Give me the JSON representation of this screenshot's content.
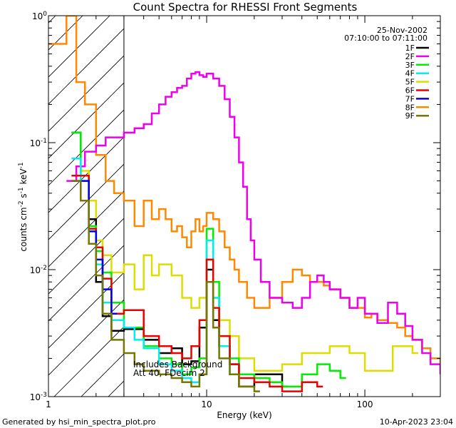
{
  "chart_data": {
    "type": "line",
    "title": "Count Spectra for RHESSI Front Segments",
    "xlabel": "Energy (keV)",
    "ylabel_parts": {
      "base": "counts cm",
      "exp1": "-2",
      "mid1": " s",
      "exp2": "-1",
      "mid2": " keV",
      "exp3": "-1"
    },
    "xscale": "log",
    "yscale": "log",
    "xlim": [
      1,
      300
    ],
    "ylim": [
      0.001,
      1
    ],
    "x_ticks": [
      {
        "value": 1,
        "label": "1"
      },
      {
        "value": 10,
        "label": "10"
      },
      {
        "value": 100,
        "label": "100"
      }
    ],
    "y_ticks": [
      {
        "value": 1,
        "base": "10",
        "exp": "0"
      },
      {
        "value": 0.1,
        "base": "10",
        "exp": "-1"
      },
      {
        "value": 0.01,
        "base": "10",
        "exp": "-2"
      },
      {
        "value": 0.001,
        "base": "10",
        "exp": "-3"
      }
    ],
    "date": "25-Nov-2002",
    "time_range": "07:10:00 to 07:11:00",
    "hatched_region_max_energy": 3,
    "annotation_lines": [
      "Includes Background",
      "Att 40, FDecim 2"
    ],
    "series": [
      {
        "name": "1F",
        "color": "#000000",
        "x": [
          1.4,
          1.6,
          1.8,
          2.0,
          2.2,
          2.5,
          3,
          4,
          5,
          6,
          7,
          8,
          9,
          10,
          11,
          12,
          14,
          16,
          20,
          25,
          30
        ],
        "y": [
          0.12,
          0.055,
          0.025,
          0.008,
          0.0043,
          0.0033,
          0.0034,
          0.0028,
          0.0022,
          0.0024,
          0.0018,
          0.0019,
          0.0035,
          0.01,
          0.004,
          0.0025,
          0.0018,
          0.0012,
          0.0015,
          0.0015,
          0.0012
        ]
      },
      {
        "name": "2F",
        "color": "#ee00ee",
        "x": [
          1.3,
          1.5,
          1.7,
          2.0,
          2.3,
          2.6,
          3,
          3.5,
          4,
          4.5,
          5,
          5.5,
          6,
          6.5,
          7,
          7.5,
          8,
          8.5,
          9,
          9.5,
          10,
          11,
          12,
          13,
          14,
          15,
          16,
          17,
          18,
          19,
          20,
          22,
          25,
          30,
          35,
          40,
          45,
          50,
          55,
          60,
          70,
          80,
          90,
          100,
          110,
          120,
          140,
          160,
          180,
          200,
          230,
          260,
          300
        ],
        "y": [
          0.05,
          0.065,
          0.085,
          0.095,
          0.11,
          0.11,
          0.12,
          0.13,
          0.14,
          0.17,
          0.2,
          0.23,
          0.25,
          0.27,
          0.28,
          0.32,
          0.35,
          0.36,
          0.34,
          0.33,
          0.35,
          0.32,
          0.28,
          0.22,
          0.16,
          0.11,
          0.07,
          0.045,
          0.025,
          0.017,
          0.012,
          0.008,
          0.006,
          0.0055,
          0.005,
          0.006,
          0.008,
          0.009,
          0.008,
          0.007,
          0.006,
          0.005,
          0.006,
          0.0045,
          0.0045,
          0.0038,
          0.0055,
          0.0045,
          0.0036,
          0.0028,
          0.0022,
          0.0018,
          0.0015
        ]
      },
      {
        "name": "3F",
        "color": "#00ee00",
        "x": [
          1.4,
          1.6,
          1.8,
          2.0,
          2.2,
          2.5,
          3,
          4,
          5,
          6,
          7,
          8,
          9,
          10,
          11,
          12,
          14,
          16,
          20,
          25,
          30,
          40,
          50,
          60,
          70
        ],
        "y": [
          0.12,
          0.055,
          0.022,
          0.014,
          0.0095,
          0.0055,
          0.0035,
          0.0025,
          0.002,
          0.0018,
          0.0015,
          0.0017,
          0.002,
          0.021,
          0.008,
          0.003,
          0.002,
          0.0015,
          0.0014,
          0.0013,
          0.0012,
          0.0015,
          0.0018,
          0.0016,
          0.0014
        ]
      },
      {
        "name": "4F",
        "color": "#00eeee",
        "x": [
          1.4,
          1.6,
          1.8,
          2.0,
          2.2,
          2.5,
          3,
          3.5,
          4,
          5,
          6,
          7,
          8,
          9,
          10,
          11,
          12,
          14
        ],
        "y": [
          0.075,
          0.05,
          0.021,
          0.011,
          0.0055,
          0.004,
          0.0035,
          0.0028,
          0.0024,
          0.0018,
          0.0016,
          0.0014,
          0.0013,
          0.0015,
          0.017,
          0.006,
          0.0025,
          0.0015
        ]
      },
      {
        "name": "5F",
        "color": "#dddd00",
        "x": [
          1.4,
          1.6,
          1.8,
          2.0,
          2.2,
          2.5,
          3,
          3.5,
          4,
          4.5,
          5,
          6,
          7,
          8,
          9,
          10,
          11,
          12,
          14,
          16,
          20,
          30,
          40,
          60,
          80,
          100,
          150,
          200
        ],
        "y": [
          0.055,
          0.06,
          0.035,
          0.017,
          0.013,
          0.0095,
          0.011,
          0.007,
          0.013,
          0.009,
          0.011,
          0.009,
          0.006,
          0.005,
          0.006,
          0.012,
          0.006,
          0.004,
          0.003,
          0.002,
          0.0016,
          0.0018,
          0.0022,
          0.0025,
          0.0022,
          0.0016,
          0.0025,
          0.0022
        ]
      },
      {
        "name": "6F",
        "color": "#ee0000",
        "x": [
          1.4,
          1.6,
          1.8,
          2.0,
          2.2,
          2.5,
          3,
          4,
          5,
          6,
          7,
          8,
          9,
          10,
          11,
          12,
          14,
          16,
          20,
          25,
          30,
          40,
          50
        ],
        "y": [
          0.055,
          0.055,
          0.021,
          0.015,
          0.0085,
          0.0045,
          0.0048,
          0.003,
          0.0025,
          0.0022,
          0.002,
          0.0025,
          0.004,
          0.012,
          0.005,
          0.003,
          0.0018,
          0.0014,
          0.0013,
          0.0012,
          0.0011,
          0.0013,
          0.0012
        ]
      },
      {
        "name": "7F",
        "color": "#0000ee",
        "x": [
          1.4,
          1.6,
          1.8,
          2.0,
          2.2,
          2.5
        ],
        "y": [
          0.05,
          0.05,
          0.02,
          0.012,
          0.007,
          0.0045
        ]
      },
      {
        "name": "8F",
        "color": "#ff8800",
        "x": [
          1.0,
          1.1,
          1.3,
          1.5,
          1.7,
          2.0,
          2.3,
          2.6,
          3,
          3.5,
          4,
          4.5,
          5,
          5.5,
          6,
          6.5,
          7,
          7.5,
          8,
          8.5,
          9,
          9.5,
          10,
          11,
          12,
          13,
          14,
          15,
          16,
          18,
          20,
          22,
          25,
          30,
          35,
          40,
          45,
          50,
          55,
          60,
          70,
          80,
          90,
          100,
          110,
          120,
          140,
          160,
          180,
          200,
          230,
          260,
          300
        ],
        "y": [
          0.6,
          0.6,
          1.0,
          0.3,
          0.2,
          0.08,
          0.05,
          0.04,
          0.035,
          0.022,
          0.035,
          0.025,
          0.03,
          0.025,
          0.02,
          0.022,
          0.018,
          0.015,
          0.02,
          0.025,
          0.02,
          0.022,
          0.028,
          0.025,
          0.02,
          0.015,
          0.012,
          0.01,
          0.008,
          0.006,
          0.005,
          0.005,
          0.006,
          0.008,
          0.01,
          0.009,
          0.008,
          0.008,
          0.0075,
          0.007,
          0.006,
          0.005,
          0.005,
          0.0042,
          0.0045,
          0.004,
          0.0038,
          0.0035,
          0.003,
          0.0028,
          0.0024,
          0.002,
          0.0018
        ]
      },
      {
        "name": "9F",
        "color": "#777700",
        "x": [
          1.4,
          1.6,
          1.8,
          2.0,
          2.2,
          2.5,
          3,
          3.5,
          4,
          5,
          6,
          7,
          8,
          9,
          10,
          11,
          12,
          14,
          16,
          20
        ],
        "y": [
          0.05,
          0.035,
          0.016,
          0.009,
          0.0045,
          0.0028,
          0.0022,
          0.0018,
          0.0016,
          0.0015,
          0.0014,
          0.0013,
          0.0012,
          0.0015,
          0.008,
          0.0035,
          0.002,
          0.0015,
          0.0012,
          0.0011
        ]
      }
    ],
    "grid": false,
    "legend_position": "top-right"
  },
  "footer": {
    "left": "Generated by hsi_min_spectra_plot.pro",
    "right": "10-Apr-2023 23:04"
  }
}
